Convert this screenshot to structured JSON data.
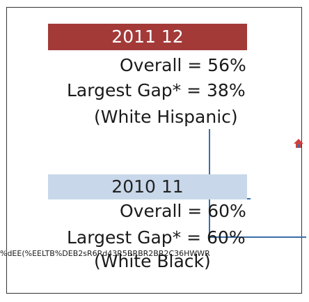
{
  "panel_2011": {
    "label": "2011 12",
    "overall": "Overall = 56%",
    "gap": "Largest Gap* = 38%",
    "group": "(White Hispanic)"
  },
  "panel_2010": {
    "label": "2010 11",
    "overall": "Overall = 60%",
    "gap": "Largest Gap* = 60%",
    "group": "(White Black)"
  },
  "overlay_text": "%dEE(%EELTB%DEB2sR6Rd43R5BRBR2BR2C36HWWR",
  "colors": {
    "header_2011": "#a33a38",
    "header_2010": "#c8d8ea",
    "lines": "#3b6ea8",
    "arrow": "#d04040"
  },
  "icons": {
    "arrow": "house-arrow-icon"
  }
}
